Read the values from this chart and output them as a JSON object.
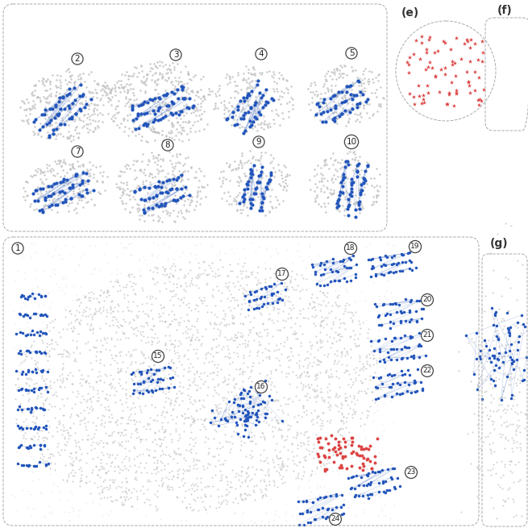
{
  "bg_color": "#ffffff",
  "gray_dot_color": "#c0c0c0",
  "gray_dot_color2": "#d8d8d8",
  "blue_dot_color": "#2255bb",
  "red_dot_color": "#dd4444",
  "blue_line_color": "#6688cc",
  "red_line_color": "#dd8888",
  "gray_line_color": "#cccccc",
  "panel_e_label": "(e)",
  "panel_f_label": "(f)",
  "panel_g_label": "(g)"
}
